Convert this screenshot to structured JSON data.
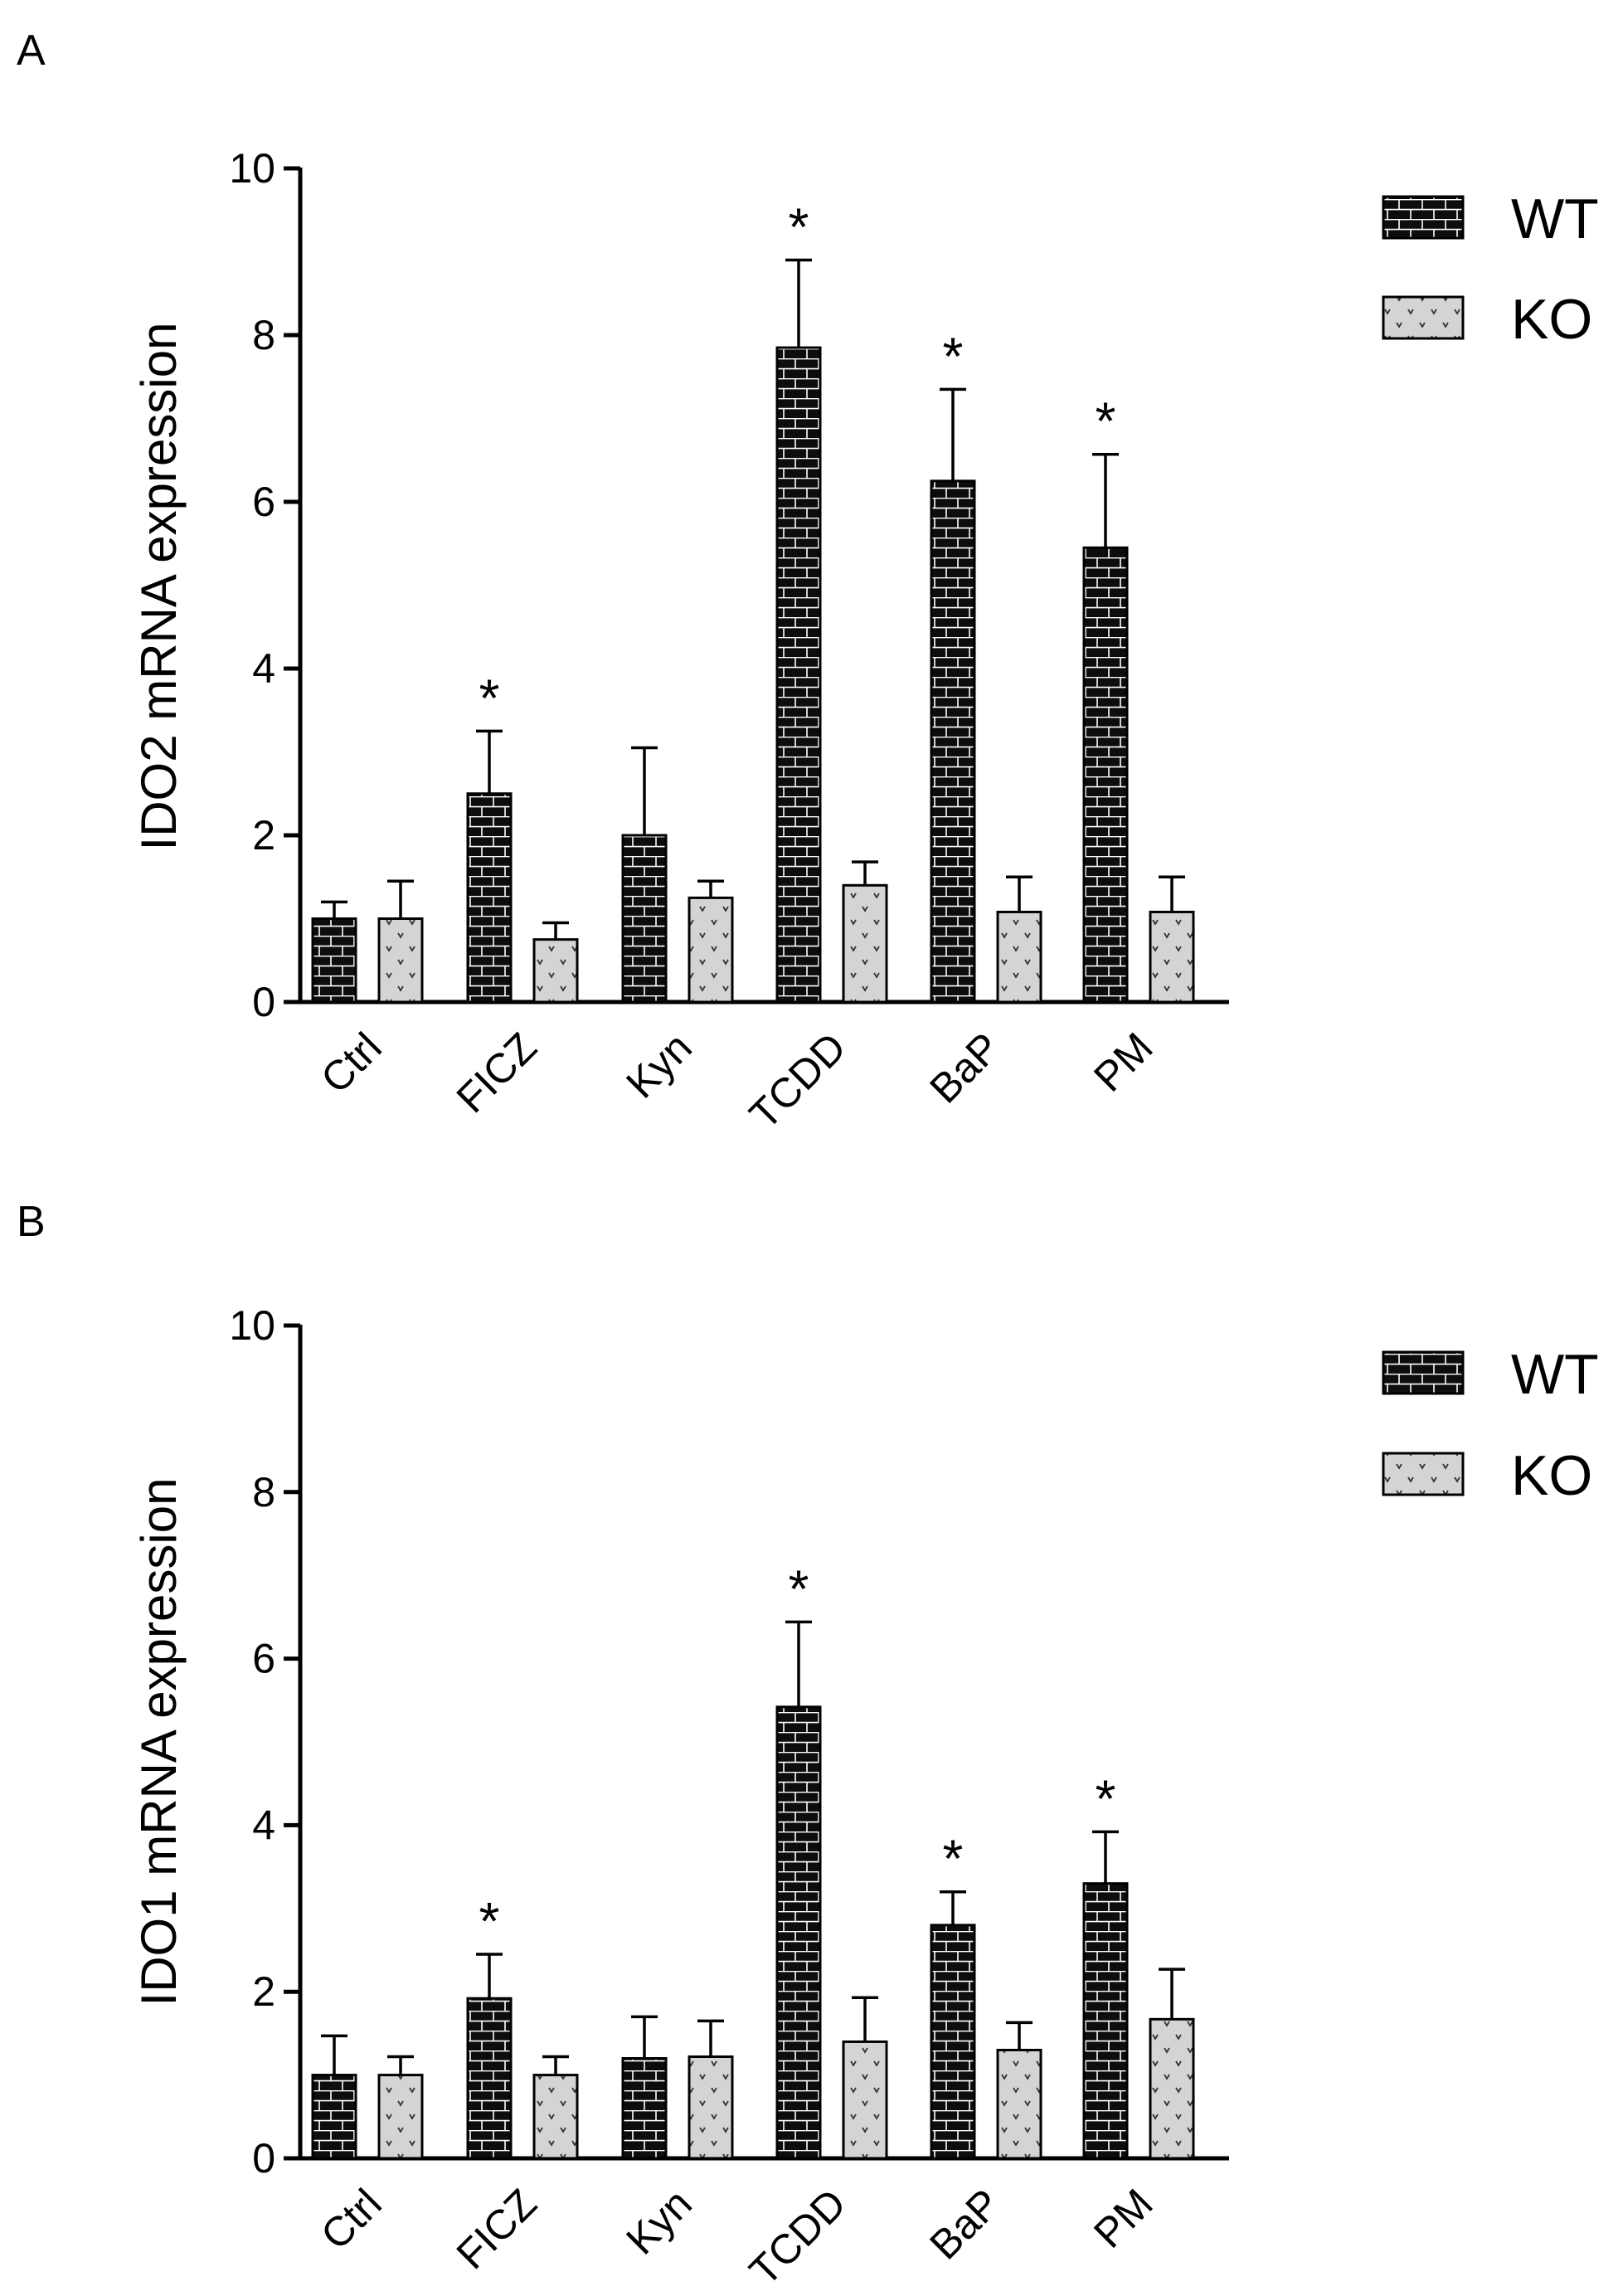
{
  "colors": {
    "wt_fill": "#0d0d0d",
    "ko_fill": "#d4d4d4",
    "axis": "#000000"
  },
  "legend": {
    "wt_label": "WT",
    "ko_label": "KO"
  },
  "chart_data": [
    {
      "panel": "A",
      "type": "bar",
      "ylabel": "IDO2 mRNA expression",
      "xlabel": "",
      "ylim": [
        0,
        10
      ],
      "yticks": [
        0,
        2,
        4,
        6,
        8,
        10
      ],
      "categories": [
        "Ctrl",
        "FICZ",
        "Kyn",
        "TCDD",
        "BaP",
        "PM"
      ],
      "series": [
        {
          "name": "WT",
          "values": [
            1.0,
            2.5,
            2.0,
            7.85,
            6.25,
            5.45
          ],
          "errors": [
            0.2,
            0.75,
            1.05,
            1.05,
            1.1,
            1.12
          ]
        },
        {
          "name": "KO",
          "values": [
            1.0,
            0.75,
            1.25,
            1.4,
            1.08,
            1.08
          ],
          "errors": [
            0.45,
            0.2,
            0.2,
            0.28,
            0.42,
            0.42
          ]
        }
      ],
      "significance": [
        "",
        "*",
        "",
        "*",
        "*",
        "*"
      ]
    },
    {
      "panel": "B",
      "type": "bar",
      "ylabel": "IDO1 mRNA expression",
      "xlabel": "",
      "ylim": [
        0,
        10
      ],
      "yticks": [
        0,
        2,
        4,
        6,
        8,
        10
      ],
      "categories": [
        "Ctrl",
        "FICZ",
        "Kyn",
        "TCDD",
        "BaP",
        "PM"
      ],
      "series": [
        {
          "name": "WT",
          "values": [
            1.0,
            1.92,
            1.2,
            5.42,
            2.8,
            3.3
          ],
          "errors": [
            0.47,
            0.53,
            0.5,
            1.02,
            0.4,
            0.62
          ]
        },
        {
          "name": "KO",
          "values": [
            1.0,
            1.0,
            1.22,
            1.4,
            1.3,
            1.67
          ],
          "errors": [
            0.22,
            0.22,
            0.43,
            0.53,
            0.33,
            0.6
          ]
        }
      ],
      "significance": [
        "",
        "*",
        "",
        "*",
        "*",
        "*"
      ]
    }
  ]
}
